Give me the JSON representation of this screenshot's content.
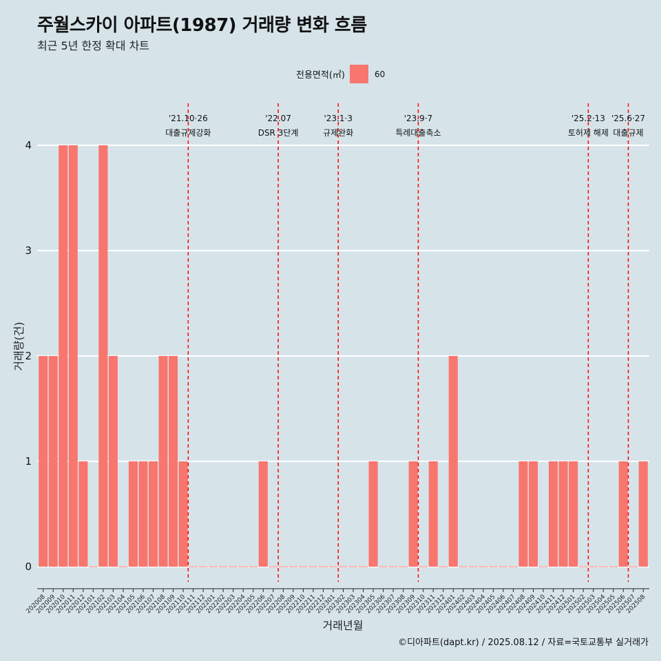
{
  "title": "주월스카이 아파트(1987) 거래량 변화 흐름",
  "subtitle": "최근 5년 한정 확대 차트",
  "legend": {
    "title": "전용면적(㎡)",
    "value": "60"
  },
  "caption": "©디아파트(dapt.kr) / 2025.08.12 / 자료=국토교통부 실거래가",
  "chart_data": {
    "type": "bar",
    "xlabel": "거래년월",
    "ylabel": "거래량(건)",
    "ylim": [
      0,
      4
    ],
    "yticks": [
      0,
      1,
      2,
      3,
      4
    ],
    "grid": true,
    "legend_position": "top",
    "series_color": "#f8766d",
    "series": [
      {
        "name": "60"
      }
    ],
    "categories": [
      "202008",
      "202009",
      "202010",
      "202011",
      "202012",
      "202101",
      "202102",
      "202103",
      "202104",
      "202105",
      "202106",
      "202107",
      "202108",
      "202109",
      "202110",
      "202111",
      "202112",
      "202201",
      "202202",
      "202203",
      "202204",
      "202205",
      "202206",
      "202207",
      "202208",
      "202209",
      "202210",
      "202211",
      "202212",
      "202301",
      "202302",
      "202303",
      "202304",
      "202305",
      "202306",
      "202307",
      "202308",
      "202309",
      "202310",
      "202311",
      "202312",
      "202401",
      "202402",
      "202403",
      "202404",
      "202405",
      "202406",
      "202407",
      "202408",
      "202409",
      "202410",
      "202411",
      "202412",
      "202501",
      "202502",
      "202503",
      "202504",
      "202505",
      "202506",
      "202507",
      "202508"
    ],
    "values": [
      2,
      2,
      4,
      4,
      1,
      0,
      4,
      2,
      0,
      1,
      1,
      1,
      2,
      2,
      1,
      0,
      0,
      0,
      0,
      0,
      0,
      0,
      1,
      0,
      0,
      0,
      0,
      0,
      0,
      0,
      0,
      0,
      0,
      1,
      0,
      0,
      0,
      1,
      0,
      1,
      0,
      2,
      0,
      0,
      0,
      0,
      0,
      0,
      1,
      1,
      0,
      1,
      1,
      1,
      0,
      0,
      0,
      0,
      1,
      0,
      1
    ],
    "events": [
      {
        "date": "'21.10·26",
        "label": "대출규제강화",
        "x": 14.5
      },
      {
        "date": "'22.07",
        "label": "DSR 3단계",
        "x": 23.5
      },
      {
        "date": "'23.1·3",
        "label": "규제완화",
        "x": 29.5
      },
      {
        "date": "'23.9·7",
        "label": "특례대출축소",
        "x": 37.5
      },
      {
        "date": "'25.2·13",
        "label": "토허제 해제",
        "x": 54.5
      },
      {
        "date": "'25.6·27",
        "label": "대출규제",
        "x": 58.5
      }
    ]
  }
}
